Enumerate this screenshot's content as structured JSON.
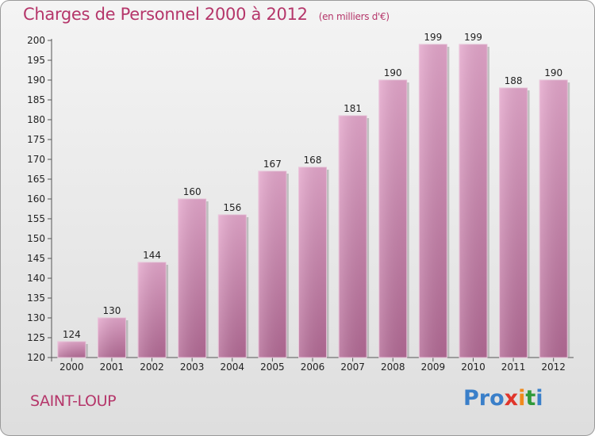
{
  "chart_data": {
    "type": "bar",
    "title": "Charges de Personnel 2000 à 2012",
    "subtitle": "(en milliers d'€)",
    "categories": [
      "2000",
      "2001",
      "2002",
      "2003",
      "2004",
      "2005",
      "2006",
      "2007",
      "2008",
      "2009",
      "2010",
      "2011",
      "2012"
    ],
    "values": [
      124,
      130,
      144,
      160,
      156,
      167,
      168,
      181,
      190,
      199,
      199,
      188,
      190
    ],
    "ylim": [
      120,
      200
    ],
    "yticks": [
      120,
      125,
      130,
      135,
      140,
      145,
      150,
      155,
      160,
      165,
      170,
      175,
      180,
      185,
      190,
      195,
      200
    ],
    "xlabel": "",
    "ylabel": "",
    "grid": false,
    "bar_color": "#d88bb6"
  },
  "commune": "SAINT-LOUP",
  "logo": {
    "p1": "Pro",
    "x": "x",
    "i1": "i",
    "t": "t",
    "i2": "i"
  }
}
